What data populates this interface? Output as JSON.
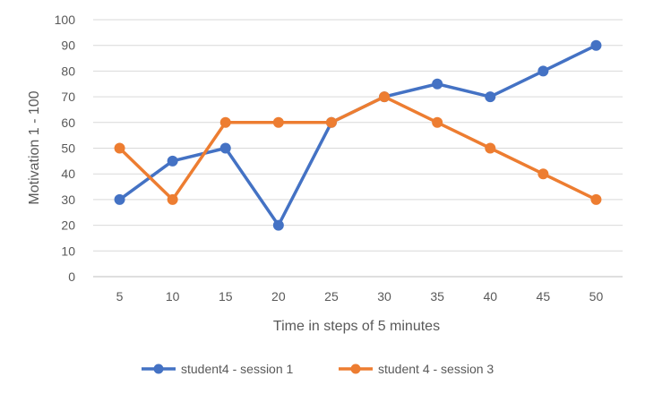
{
  "chart_data": {
    "type": "line",
    "title": "",
    "xlabel": "Time in steps of 5 minutes",
    "ylabel": "Motivation 1 - 100",
    "categories": [
      "5",
      "10",
      "15",
      "20",
      "25",
      "30",
      "35",
      "40",
      "45",
      "50"
    ],
    "ylim": [
      0,
      100
    ],
    "yticks": [
      0,
      10,
      20,
      30,
      40,
      50,
      60,
      70,
      80,
      90,
      100
    ],
    "grid": true,
    "legend_position": "bottom",
    "series": [
      {
        "name": "student4 - session 1",
        "color": "#4472C4",
        "values": [
          30,
          45,
          50,
          20,
          60,
          70,
          75,
          70,
          80,
          90
        ]
      },
      {
        "name": "student 4 - session 3",
        "color": "#ED7D31",
        "values": [
          50,
          30,
          60,
          60,
          60,
          70,
          60,
          50,
          40,
          30
        ]
      }
    ]
  }
}
